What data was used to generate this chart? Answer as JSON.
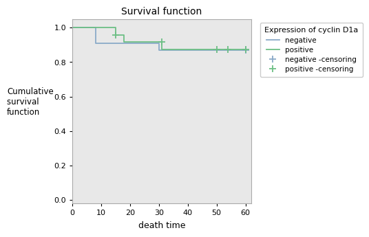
{
  "title": "Survival function",
  "xlabel": "death time",
  "ylabel_lines": [
    "Cumulative",
    "survival  ",
    "function"
  ],
  "xlim": [
    0,
    62
  ],
  "ylim": [
    -0.02,
    1.05
  ],
  "xticks": [
    0,
    10,
    20,
    30,
    40,
    50,
    60
  ],
  "yticks": [
    0.0,
    0.2,
    0.4,
    0.6,
    0.8,
    1.0
  ],
  "bg_color": "#e8e8e8",
  "fig_color": "#ffffff",
  "negative_color": "#8aaac8",
  "positive_color": "#6dbf85",
  "legend_title": "Expression of cyclin D1a",
  "negative_x": [
    0,
    8,
    8,
    13,
    13,
    30,
    30,
    60
  ],
  "negative_y": [
    1.0,
    1.0,
    0.909,
    0.909,
    0.909,
    0.909,
    0.868,
    0.868
  ],
  "positive_x": [
    0,
    15,
    15,
    18,
    18,
    20,
    20,
    31,
    31,
    35,
    35,
    60
  ],
  "positive_y": [
    1.0,
    1.0,
    0.958,
    0.958,
    0.916,
    0.916,
    0.916,
    0.916,
    0.875,
    0.875,
    0.875,
    0.875
  ],
  "negative_censors": [
    [
      60,
      0.868
    ]
  ],
  "positive_censors": [
    [
      15,
      0.958
    ],
    [
      31,
      0.916
    ],
    [
      50,
      0.875
    ],
    [
      54,
      0.875
    ],
    [
      60,
      0.875
    ]
  ]
}
